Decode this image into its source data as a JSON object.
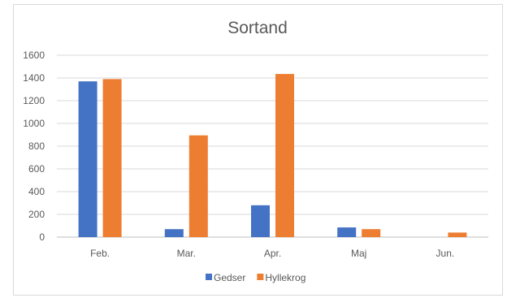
{
  "chart_data": {
    "type": "bar",
    "title": "Sortand",
    "xlabel": "",
    "ylabel": "",
    "categories": [
      "Feb.",
      "Mar.",
      "Apr.",
      "Maj",
      "Jun."
    ],
    "series": [
      {
        "name": "Gedser",
        "color": "#4472c4",
        "values": [
          1370,
          70,
          280,
          85,
          0
        ]
      },
      {
        "name": "Hyllekrog",
        "color": "#ed7d31",
        "values": [
          1390,
          895,
          1435,
          70,
          40
        ]
      }
    ],
    "ylim": [
      0,
      1600
    ],
    "yticks": [
      "0",
      "200",
      "400",
      "600",
      "800",
      "1000",
      "1200",
      "1400",
      "1600"
    ],
    "grid": true,
    "legend_position": "bottom"
  }
}
